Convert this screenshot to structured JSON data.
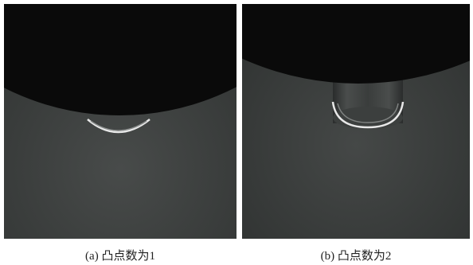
{
  "figure": {
    "panels": [
      {
        "caption": "(a) 凸点数为1"
      },
      {
        "caption": "(b) 凸点数为2"
      }
    ]
  }
}
